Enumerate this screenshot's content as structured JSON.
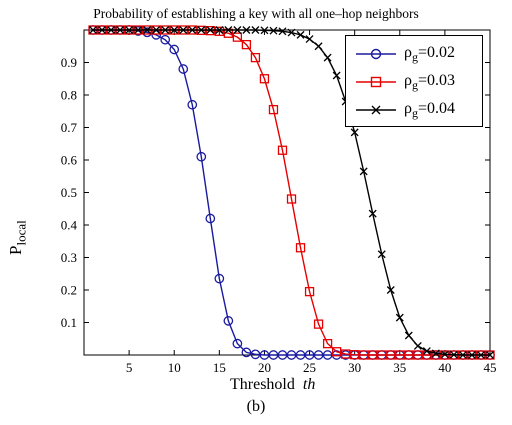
{
  "caption": "(b)",
  "colors": {
    "rho_002": "#1a1aa0",
    "rho_003": "#e60000",
    "rho_004": "#000000"
  },
  "legend": [
    {
      "sym": "ρ",
      "sub": "g",
      "val": "=0.02"
    },
    {
      "sym": "ρ",
      "sub": "g",
      "val": "=0.03"
    },
    {
      "sym": "ρ",
      "sub": "g",
      "val": "=0.04"
    }
  ],
  "chart_data": {
    "type": "line",
    "title": "Probability of establishing a key with all one–hop neighbors",
    "xlabel_text": "Threshold",
    "xlabel_var": "th",
    "ylabel_main": "P",
    "ylabel_sub": "local",
    "xlim": [
      0,
      45
    ],
    "ylim": [
      0,
      1
    ],
    "xticks": [
      5,
      10,
      15,
      20,
      25,
      30,
      35,
      40,
      45
    ],
    "yticks": [
      0.1,
      0.2,
      0.3,
      0.4,
      0.5,
      0.6,
      0.7,
      0.8,
      0.9
    ],
    "legend_position": "top-right",
    "grid": false,
    "x": [
      1,
      2,
      3,
      4,
      5,
      6,
      7,
      8,
      9,
      10,
      11,
      12,
      13,
      14,
      15,
      16,
      17,
      18,
      19,
      20,
      21,
      22,
      23,
      24,
      25,
      26,
      27,
      28,
      29,
      30,
      31,
      32,
      33,
      34,
      35,
      36,
      37,
      38,
      39,
      40,
      41,
      42,
      43,
      44,
      45
    ],
    "series": [
      {
        "name": "ρg=0.02",
        "marker": "circle",
        "values": [
          1.0,
          1.0,
          1.0,
          1.0,
          1.0,
          0.997,
          0.993,
          0.985,
          0.97,
          0.94,
          0.88,
          0.77,
          0.61,
          0.42,
          0.235,
          0.105,
          0.035,
          0.008,
          0.002,
          0,
          0,
          0,
          0,
          0,
          0,
          0,
          0,
          0,
          0,
          0,
          0,
          0,
          0,
          0,
          0,
          0,
          0,
          0,
          0,
          0,
          0,
          0,
          0,
          0,
          0
        ]
      },
      {
        "name": "ρg=0.03",
        "marker": "square",
        "values": [
          1,
          1,
          1,
          1,
          1,
          1,
          1,
          1,
          1,
          1,
          1,
          1,
          0.999,
          0.998,
          0.996,
          0.99,
          0.978,
          0.955,
          0.915,
          0.85,
          0.755,
          0.63,
          0.48,
          0.33,
          0.195,
          0.095,
          0.035,
          0.01,
          0.003,
          0.001,
          0,
          0,
          0,
          0,
          0,
          0,
          0,
          0,
          0,
          0,
          0,
          0,
          0,
          0,
          0
        ]
      },
      {
        "name": "ρg=0.04",
        "marker": "x",
        "values": [
          1,
          1,
          1,
          1,
          1,
          1,
          1,
          1,
          1,
          1,
          1,
          1,
          1,
          1,
          1,
          1,
          1,
          1,
          1,
          0.999,
          0.998,
          0.996,
          0.992,
          0.985,
          0.972,
          0.95,
          0.915,
          0.86,
          0.78,
          0.685,
          0.565,
          0.435,
          0.31,
          0.2,
          0.115,
          0.06,
          0.028,
          0.012,
          0.005,
          0.002,
          0.001,
          0,
          0,
          0,
          0
        ]
      }
    ]
  }
}
